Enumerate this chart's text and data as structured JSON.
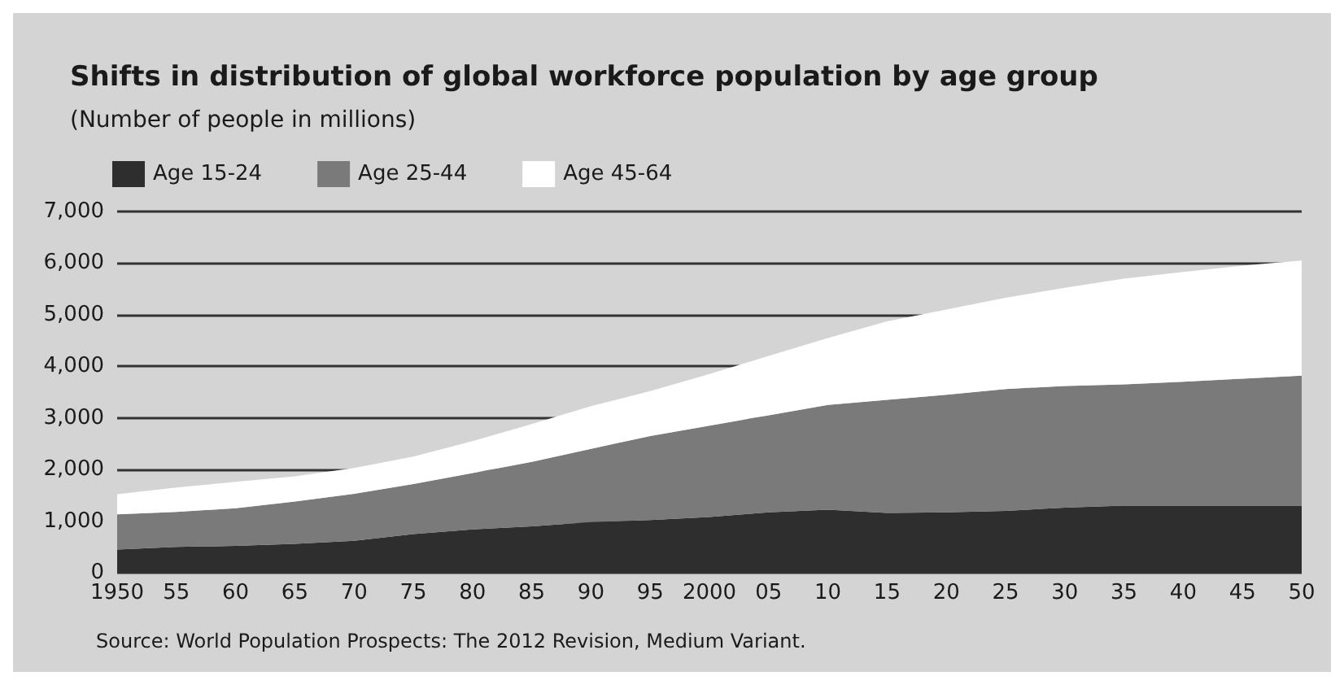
{
  "chart_data": {
    "type": "area",
    "stacked": true,
    "title": "Shifts in distribution of global workforce population by age group",
    "subtitle": "(Number of people in millions)",
    "x": [
      1950,
      1955,
      1960,
      1965,
      1970,
      1975,
      1980,
      1985,
      1990,
      1995,
      2000,
      2005,
      2010,
      2015,
      2020,
      2025,
      2030,
      2035,
      2040,
      2045,
      2050
    ],
    "series": [
      {
        "name": "Age 15-24",
        "color": "#2e2e2e",
        "values": [
          450,
          500,
          520,
          560,
          620,
          750,
          840,
          900,
          980,
          1020,
          1080,
          1170,
          1220,
          1160,
          1170,
          1200,
          1260,
          1300,
          1300,
          1300,
          1300
        ]
      },
      {
        "name": "Age 25-44",
        "color": "#7a7a7a",
        "values": [
          680,
          680,
          730,
          820,
          910,
          970,
          1090,
          1250,
          1420,
          1630,
          1770,
          1880,
          2030,
          2190,
          2280,
          2360,
          2360,
          2350,
          2400,
          2460,
          2520
        ]
      },
      {
        "name": "Age 45-64",
        "color": "#ffffff",
        "values": [
          390,
          470,
          510,
          490,
          500,
          530,
          620,
          730,
          830,
          870,
          1000,
          1150,
          1300,
          1520,
          1650,
          1770,
          1900,
          2050,
          2130,
          2190,
          2230
        ]
      }
    ],
    "xticks": [
      1950,
      {
        "value": 1955,
        "label": "55"
      },
      {
        "value": 1960,
        "label": "60"
      },
      {
        "value": 1965,
        "label": "65"
      },
      {
        "value": 1970,
        "label": "70"
      },
      {
        "value": 1975,
        "label": "75"
      },
      {
        "value": 1980,
        "label": "80"
      },
      {
        "value": 1985,
        "label": "85"
      },
      {
        "value": 1990,
        "label": "90"
      },
      {
        "value": 1995,
        "label": "95"
      },
      2000,
      {
        "value": 2005,
        "label": "05"
      },
      {
        "value": 2010,
        "label": "10"
      },
      {
        "value": 2015,
        "label": "15"
      },
      {
        "value": 2020,
        "label": "20"
      },
      {
        "value": 2025,
        "label": "25"
      },
      {
        "value": 2030,
        "label": "30"
      },
      {
        "value": 2035,
        "label": "35"
      },
      {
        "value": 2040,
        "label": "40"
      },
      {
        "value": 2045,
        "label": "45"
      },
      {
        "value": 2050,
        "label": "50"
      }
    ],
    "xlim": [
      1950,
      2050
    ],
    "ylim": [
      0,
      7000
    ],
    "yticks": [
      0,
      {
        "value": 1000,
        "label": "1,000"
      },
      {
        "value": 2000,
        "label": "2,000"
      },
      {
        "value": 3000,
        "label": "3,000"
      },
      {
        "value": 4000,
        "label": "4,000"
      },
      {
        "value": 5000,
        "label": "5,000"
      },
      {
        "value": 6000,
        "label": "6,000"
      },
      {
        "value": 7000,
        "label": "7,000"
      }
    ],
    "grid": "y",
    "legend": "top left",
    "annotations": [
      "Source: World Population Prospects: The 2012 Revision, Medium Variant."
    ]
  }
}
